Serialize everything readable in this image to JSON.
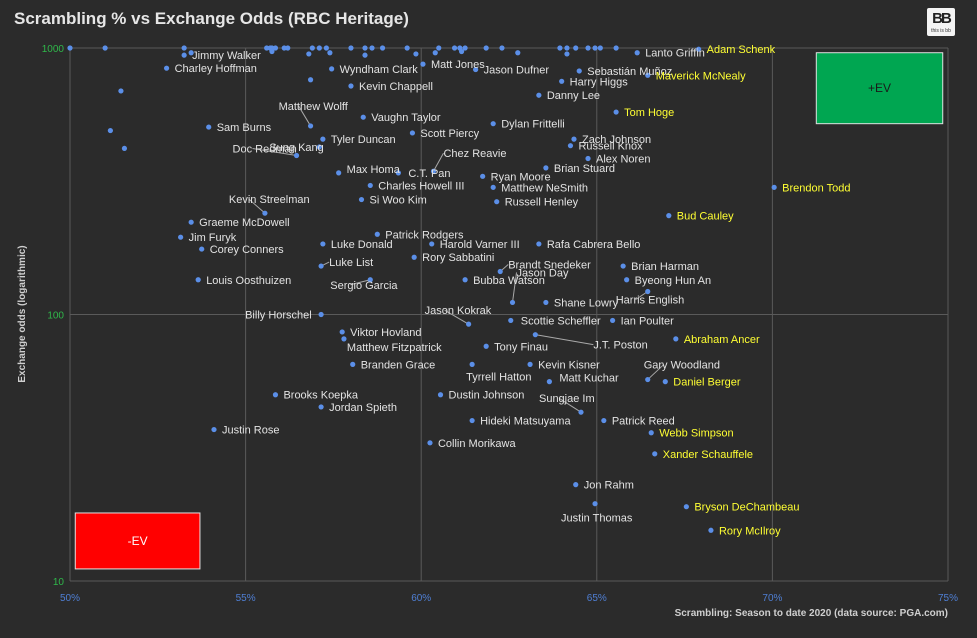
{
  "header": {
    "title": "Scrambling % vs Exchange Odds (RBC Heritage)"
  },
  "logo": {
    "mark": "BB",
    "sub": "this is bb"
  },
  "chart_data": {
    "type": "scatter",
    "title": "Scrambling % vs Exchange Odds (RBC Heritage)",
    "xlabel": "Scrambling: Season to date 2020 (data source: PGA.com)",
    "ylabel": "Exchange odds (logarithmic)",
    "xlim": [
      0.5,
      0.75
    ],
    "ylim": [
      10,
      1000
    ],
    "yscale": "log",
    "grid": true,
    "x_ticks": [
      "50%",
      "55%",
      "60%",
      "65%",
      "70%",
      "75%"
    ],
    "y_ticks": [
      "10",
      "100",
      "1000"
    ],
    "zones": [
      {
        "label": "+EV",
        "color": "#00a651",
        "x": [
          0.7125,
          0.7485
        ],
        "y": [
          520,
          960
        ]
      },
      {
        "label": "-EV",
        "color": "#ff0000",
        "x": [
          0.5015,
          0.537
        ],
        "y": [
          11.1,
          18.0
        ]
      }
    ],
    "points": [
      {
        "name": "Adam Schenk",
        "x": 0.679,
        "y": 990,
        "highlight": true
      },
      {
        "name": "Lanto Griffin",
        "x": 0.6615,
        "y": 960,
        "highlight": false
      },
      {
        "name": "Jimmy Walker",
        "x": 0.5325,
        "y": 940,
        "highlight": false
      },
      {
        "name": "Charley Hoffman",
        "x": 0.5275,
        "y": 840,
        "highlight": false
      },
      {
        "name": "Matt Jones",
        "x": 0.6005,
        "y": 870,
        "highlight": false
      },
      {
        "name": "Wyndham Clark",
        "x": 0.5745,
        "y": 835,
        "highlight": false
      },
      {
        "name": "Jason Dufner",
        "x": 0.6155,
        "y": 830,
        "highlight": false
      },
      {
        "name": "Sebastián Muñoz",
        "x": 0.645,
        "y": 820,
        "highlight": false
      },
      {
        "name": "Maverick McNealy",
        "x": 0.6645,
        "y": 790,
        "highlight": true
      },
      {
        "name": "Harry Higgs",
        "x": 0.64,
        "y": 750,
        "highlight": false
      },
      {
        "name": "Kevin Chappell",
        "x": 0.58,
        "y": 720,
        "highlight": false
      },
      {
        "name": "Danny Lee",
        "x": 0.6335,
        "y": 665,
        "highlight": false
      },
      {
        "name": "Matthew Wolff",
        "x": 0.5685,
        "y": 510,
        "highlight": false
      },
      {
        "name": "Vaughn Taylor",
        "x": 0.5835,
        "y": 550,
        "highlight": false
      },
      {
        "name": "Tom Hoge",
        "x": 0.6555,
        "y": 575,
        "highlight": true
      },
      {
        "name": "Dylan Frittelli",
        "x": 0.6205,
        "y": 520,
        "highlight": false
      },
      {
        "name": "Sam Burns",
        "x": 0.5395,
        "y": 505,
        "highlight": false
      },
      {
        "name": "Tyler Duncan",
        "x": 0.572,
        "y": 455,
        "highlight": false
      },
      {
        "name": "Scott Piercy",
        "x": 0.5975,
        "y": 480,
        "highlight": false
      },
      {
        "name": "Zach Johnson",
        "x": 0.6435,
        "y": 455,
        "highlight": false
      },
      {
        "name": "Sung Kang",
        "x": 0.571,
        "y": 425,
        "highlight": false
      },
      {
        "name": "Russell Knox",
        "x": 0.6425,
        "y": 430,
        "highlight": false
      },
      {
        "name": "Doc Redman",
        "x": 0.5645,
        "y": 395,
        "highlight": false
      },
      {
        "name": "Alex Noren",
        "x": 0.6475,
        "y": 385,
        "highlight": false
      },
      {
        "name": "Chez Reavie",
        "x": 0.6035,
        "y": 345,
        "highlight": false
      },
      {
        "name": "Max Homa",
        "x": 0.5765,
        "y": 340,
        "highlight": false
      },
      {
        "name": "C.T. Pan",
        "x": 0.5935,
        "y": 340,
        "highlight": false
      },
      {
        "name": "Brian Stuard",
        "x": 0.6355,
        "y": 355,
        "highlight": false
      },
      {
        "name": "Ryan Moore",
        "x": 0.6175,
        "y": 330,
        "highlight": false
      },
      {
        "name": "Charles Howell III",
        "x": 0.5855,
        "y": 305,
        "highlight": false
      },
      {
        "name": "Matthew NeSmith",
        "x": 0.6205,
        "y": 300,
        "highlight": false
      },
      {
        "name": "Brendon Todd",
        "x": 0.7005,
        "y": 300,
        "highlight": true
      },
      {
        "name": "Si Woo Kim",
        "x": 0.583,
        "y": 270,
        "highlight": false
      },
      {
        "name": "Russell Henley",
        "x": 0.6215,
        "y": 265,
        "highlight": false
      },
      {
        "name": "Kevin Streelman",
        "x": 0.5555,
        "y": 240,
        "highlight": false
      },
      {
        "name": "Bud Cauley",
        "x": 0.6705,
        "y": 235,
        "highlight": true
      },
      {
        "name": "Graeme McDowell",
        "x": 0.5345,
        "y": 222,
        "highlight": false
      },
      {
        "name": "Patrick Rodgers",
        "x": 0.5875,
        "y": 200,
        "highlight": false
      },
      {
        "name": "Jim Furyk",
        "x": 0.5315,
        "y": 195,
        "highlight": false
      },
      {
        "name": "Luke Donald",
        "x": 0.572,
        "y": 184,
        "highlight": false
      },
      {
        "name": "Harold Varner III",
        "x": 0.603,
        "y": 184,
        "highlight": false
      },
      {
        "name": "Rafa Cabrera Bello",
        "x": 0.6335,
        "y": 184,
        "highlight": false
      },
      {
        "name": "Corey Conners",
        "x": 0.5375,
        "y": 176,
        "highlight": false
      },
      {
        "name": "Rory Sabbatini",
        "x": 0.598,
        "y": 164,
        "highlight": false
      },
      {
        "name": "Luke List",
        "x": 0.5715,
        "y": 152,
        "highlight": false
      },
      {
        "name": "Brian Harman",
        "x": 0.6575,
        "y": 152,
        "highlight": false
      },
      {
        "name": "Brandt Snedeker",
        "x": 0.6225,
        "y": 145,
        "highlight": false
      },
      {
        "name": "Louis Oosthuizen",
        "x": 0.5365,
        "y": 135,
        "highlight": false
      },
      {
        "name": "Sergio Garcia",
        "x": 0.5855,
        "y": 135,
        "highlight": false
      },
      {
        "name": "Bubba Watson",
        "x": 0.6125,
        "y": 135,
        "highlight": false
      },
      {
        "name": "Byeong Hun An",
        "x": 0.6585,
        "y": 135,
        "highlight": false
      },
      {
        "name": "Harris English",
        "x": 0.6645,
        "y": 122,
        "highlight": false
      },
      {
        "name": "Jason Day",
        "x": 0.626,
        "y": 111,
        "highlight": false
      },
      {
        "name": "Shane Lowry",
        "x": 0.6355,
        "y": 111,
        "highlight": false
      },
      {
        "name": "Billy Horschel",
        "x": 0.5715,
        "y": 100,
        "highlight": false
      },
      {
        "name": "Jason Kokrak",
        "x": 0.6135,
        "y": 92,
        "highlight": false
      },
      {
        "name": "Scottie Scheffler",
        "x": 0.6255,
        "y": 95,
        "highlight": false
      },
      {
        "name": "Ian Poulter",
        "x": 0.6545,
        "y": 95,
        "highlight": false
      },
      {
        "name": "Viktor Hovland",
        "x": 0.5775,
        "y": 86,
        "highlight": false
      },
      {
        "name": "J.T. Poston",
        "x": 0.6325,
        "y": 84,
        "highlight": false
      },
      {
        "name": "Matthew Fitzpatrick",
        "x": 0.578,
        "y": 81,
        "highlight": false
      },
      {
        "name": "Abraham Ancer",
        "x": 0.6725,
        "y": 81,
        "highlight": true
      },
      {
        "name": "Tony Finau",
        "x": 0.6185,
        "y": 76,
        "highlight": false
      },
      {
        "name": "Branden Grace",
        "x": 0.5805,
        "y": 65,
        "highlight": false
      },
      {
        "name": "Tyrrell Hatton",
        "x": 0.6145,
        "y": 65,
        "highlight": false
      },
      {
        "name": "Kevin Kisner",
        "x": 0.631,
        "y": 65,
        "highlight": false
      },
      {
        "name": "Gary Woodland",
        "x": 0.6645,
        "y": 57,
        "highlight": false
      },
      {
        "name": "Matt Kuchar",
        "x": 0.6365,
        "y": 56,
        "highlight": false
      },
      {
        "name": "Daniel Berger",
        "x": 0.6695,
        "y": 56,
        "highlight": true
      },
      {
        "name": "Brooks Koepka",
        "x": 0.5585,
        "y": 50,
        "highlight": false
      },
      {
        "name": "Dustin Johnson",
        "x": 0.6055,
        "y": 50,
        "highlight": false
      },
      {
        "name": "Jordan Spieth",
        "x": 0.5715,
        "y": 45,
        "highlight": false
      },
      {
        "name": "Sungjae Im",
        "x": 0.6455,
        "y": 43,
        "highlight": false
      },
      {
        "name": "Patrick Reed",
        "x": 0.652,
        "y": 40,
        "highlight": false
      },
      {
        "name": "Hideki Matsuyama",
        "x": 0.6145,
        "y": 40,
        "highlight": false
      },
      {
        "name": "Justin Rose",
        "x": 0.541,
        "y": 37,
        "highlight": false
      },
      {
        "name": "Webb Simpson",
        "x": 0.6655,
        "y": 36,
        "highlight": true
      },
      {
        "name": "Collin Morikawa",
        "x": 0.6025,
        "y": 33,
        "highlight": false
      },
      {
        "name": "Xander Schauffele",
        "x": 0.6665,
        "y": 30,
        "highlight": true
      },
      {
        "name": "Jon Rahm",
        "x": 0.644,
        "y": 23,
        "highlight": false
      },
      {
        "name": "Justin Thomas",
        "x": 0.6495,
        "y": 19.5,
        "highlight": false
      },
      {
        "name": "Bryson DeChambeau",
        "x": 0.6755,
        "y": 19,
        "highlight": true
      },
      {
        "name": "Rory McIlroy",
        "x": 0.6825,
        "y": 15.5,
        "highlight": true
      }
    ],
    "unlabeled_points": [
      [
        0.5,
        1000
      ],
      [
        0.51,
        1000
      ],
      [
        0.5325,
        1000
      ],
      [
        0.556,
        1000
      ],
      [
        0.557,
        1000
      ],
      [
        0.5575,
        1000
      ],
      [
        0.5585,
        1000
      ],
      [
        0.561,
        1000
      ],
      [
        0.562,
        1000
      ],
      [
        0.569,
        1000
      ],
      [
        0.571,
        1000
      ],
      [
        0.573,
        1000
      ],
      [
        0.58,
        1000
      ],
      [
        0.584,
        1000
      ],
      [
        0.586,
        1000
      ],
      [
        0.589,
        1000
      ],
      [
        0.596,
        1000
      ],
      [
        0.605,
        1000
      ],
      [
        0.6095,
        1000
      ],
      [
        0.611,
        1000
      ],
      [
        0.6125,
        1000
      ],
      [
        0.6185,
        1000
      ],
      [
        0.623,
        1000
      ],
      [
        0.6395,
        1000
      ],
      [
        0.6415,
        1000
      ],
      [
        0.644,
        1000
      ],
      [
        0.6475,
        1000
      ],
      [
        0.6495,
        1000
      ],
      [
        0.651,
        1000
      ],
      [
        0.6555,
        1000
      ],
      [
        0.5345,
        960
      ],
      [
        0.5575,
        970
      ],
      [
        0.568,
        950
      ],
      [
        0.574,
        960
      ],
      [
        0.584,
        940
      ],
      [
        0.5985,
        950
      ],
      [
        0.604,
        960
      ],
      [
        0.6115,
        970
      ],
      [
        0.6275,
        960
      ],
      [
        0.6415,
        950
      ],
      [
        0.5145,
        690
      ],
      [
        0.5115,
        490
      ],
      [
        0.5155,
        420
      ],
      [
        0.5685,
        760
      ]
    ]
  }
}
